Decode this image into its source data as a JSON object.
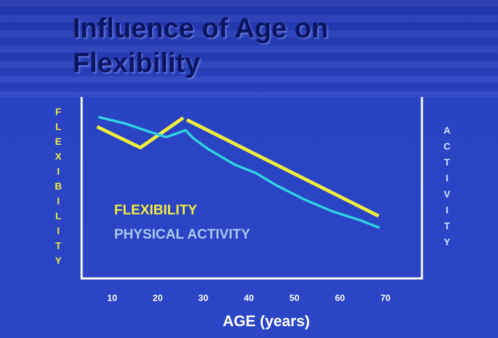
{
  "chart_data": {
    "type": "line",
    "title": "Influence of Age on Flexibility",
    "xlabel": "AGE (years)",
    "ylabel": "FLEXIBILITY",
    "y2label": "ACTIVITY",
    "xlim": [
      3.3,
      78
    ],
    "xticks": [
      10,
      20,
      30,
      40,
      50,
      60,
      70
    ],
    "ylim": [
      0,
      100
    ],
    "grid": false,
    "series": [
      {
        "name": "FLEXIBILITY",
        "color": "#f2ee3c",
        "x": [
          6.7,
          16.2,
          25.6,
          26,
          26.4,
          68.5
        ],
        "values": [
          83.6,
          72.1,
          88.5,
          null,
          87.4,
          34.4
        ]
      },
      {
        "name": "PHYSICAL ACTIVITY",
        "color": "#2fd6e2",
        "x": [
          7,
          12.7,
          18.1,
          21.9,
          24.1,
          26.1,
          27.9,
          31,
          37,
          41.6,
          46.2,
          52.2,
          58.3,
          64.4,
          68.7
        ],
        "values": [
          88.9,
          85.5,
          80.9,
          77.9,
          79.8,
          81.7,
          77.1,
          71.4,
          62.6,
          58,
          51.1,
          43.5,
          37,
          32.1,
          27.9
        ]
      }
    ]
  }
}
